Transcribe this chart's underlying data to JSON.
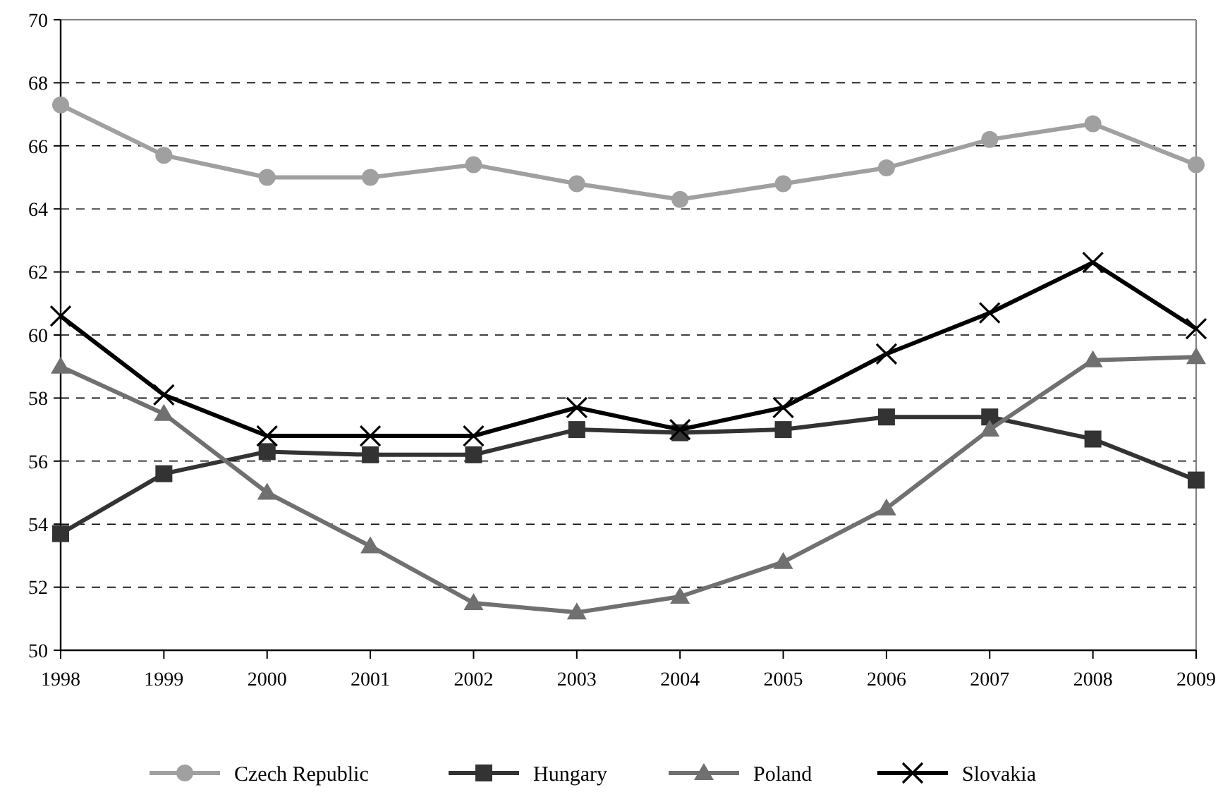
{
  "chart_data": {
    "type": "line",
    "categories": [
      "1998",
      "1999",
      "2000",
      "2001",
      "2002",
      "2003",
      "2004",
      "2005",
      "2006",
      "2007",
      "2008",
      "2009"
    ],
    "ylim": [
      50,
      70
    ],
    "yticks": [
      50,
      52,
      54,
      56,
      58,
      60,
      62,
      64,
      66,
      68,
      70
    ],
    "grid": "y",
    "legend": "bottom",
    "line_style": "solid",
    "series": [
      {
        "name": "Czech Republic",
        "color": "#a0a0a0",
        "marker": "circle",
        "values": [
          67.3,
          65.7,
          65.0,
          65.0,
          65.4,
          64.8,
          64.3,
          64.8,
          65.3,
          66.2,
          66.7,
          65.4
        ]
      },
      {
        "name": "Hungary",
        "color": "#333333",
        "marker": "square",
        "values": [
          53.7,
          55.6,
          56.3,
          56.2,
          56.2,
          57.0,
          56.9,
          57.0,
          57.4,
          57.4,
          56.7,
          55.4
        ]
      },
      {
        "name": "Poland",
        "color": "#707070",
        "marker": "triangle",
        "values": [
          59.0,
          57.5,
          55.0,
          53.3,
          51.5,
          51.2,
          51.7,
          52.8,
          54.5,
          57.0,
          59.2,
          59.3
        ]
      },
      {
        "name": "Slovakia",
        "color": "#000000",
        "marker": "cross",
        "values": [
          60.6,
          58.1,
          56.8,
          56.8,
          56.8,
          57.7,
          57.0,
          57.7,
          59.4,
          60.7,
          62.3,
          60.2
        ]
      }
    ]
  }
}
